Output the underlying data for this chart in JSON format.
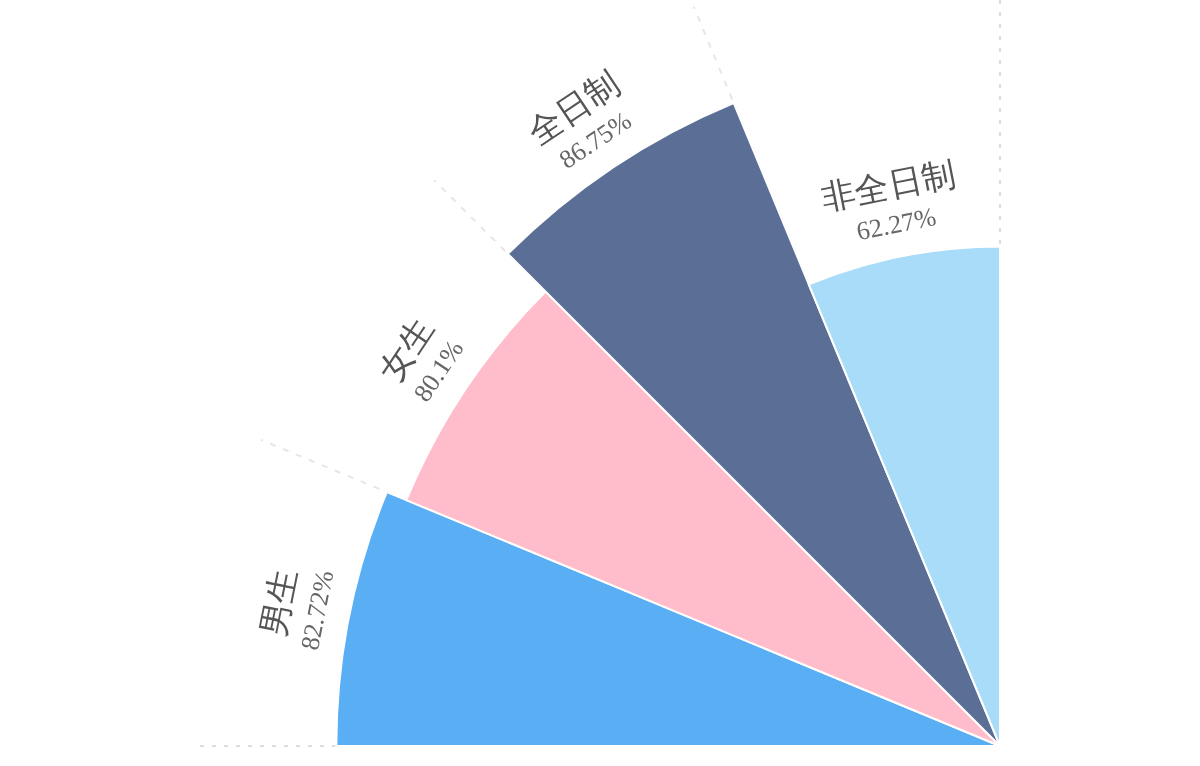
{
  "chart_data": {
    "type": "other",
    "categories": [
      "男生",
      "女生",
      "全日制",
      "非全日制"
    ],
    "values": [
      82.72,
      80.1,
      86.75,
      62.27
    ],
    "value_labels": [
      "82.72%",
      "80.1%",
      "86.75%",
      "62.27%"
    ],
    "colors": [
      "#5aaef4",
      "#ffbdcb",
      "#5a6e96",
      "#a8dcf9"
    ]
  }
}
